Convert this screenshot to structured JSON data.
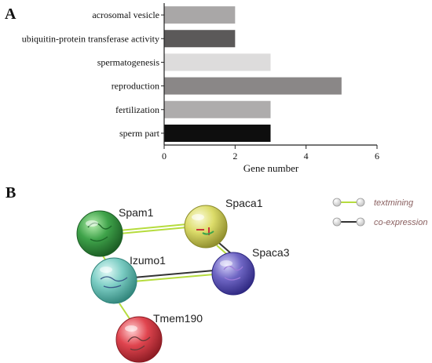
{
  "panels": {
    "a_label": "A",
    "b_label": "B"
  },
  "chart_data": {
    "type": "bar",
    "orientation": "horizontal",
    "categories": [
      "acrosomal vesicle",
      "ubiquitin-protein transferase activity",
      "spermatogenesis",
      "reproduction",
      "fertilization",
      "sperm part"
    ],
    "values": [
      2,
      2,
      3,
      5,
      3,
      3
    ],
    "bar_colors": [
      "#a9a7a7",
      "#5b5959",
      "#dddcdc",
      "#8a8787",
      "#aeacac",
      "#0e0e0e"
    ],
    "xlabel": "Gene number",
    "xlim": [
      0,
      6
    ],
    "xticks": [
      "0",
      "2",
      "4",
      "6"
    ],
    "grid": false,
    "legend": "none"
  },
  "network": {
    "nodes": [
      {
        "id": "spam1",
        "label": "Spam1",
        "color": "#3fa34a"
      },
      {
        "id": "spaca1",
        "label": "Spaca1",
        "color": "#dcdc6a"
      },
      {
        "id": "izumo1",
        "label": "Izumo1",
        "color": "#7ccdc4"
      },
      {
        "id": "spaca3",
        "label": "Spaca3",
        "color": "#6f66c4"
      },
      {
        "id": "tmem190",
        "label": "Tmem190",
        "color": "#e0454f"
      }
    ],
    "legend": [
      {
        "label": "textmining",
        "color": "#b6dc3e"
      },
      {
        "label": "co-expression",
        "color": "#333333"
      }
    ]
  }
}
